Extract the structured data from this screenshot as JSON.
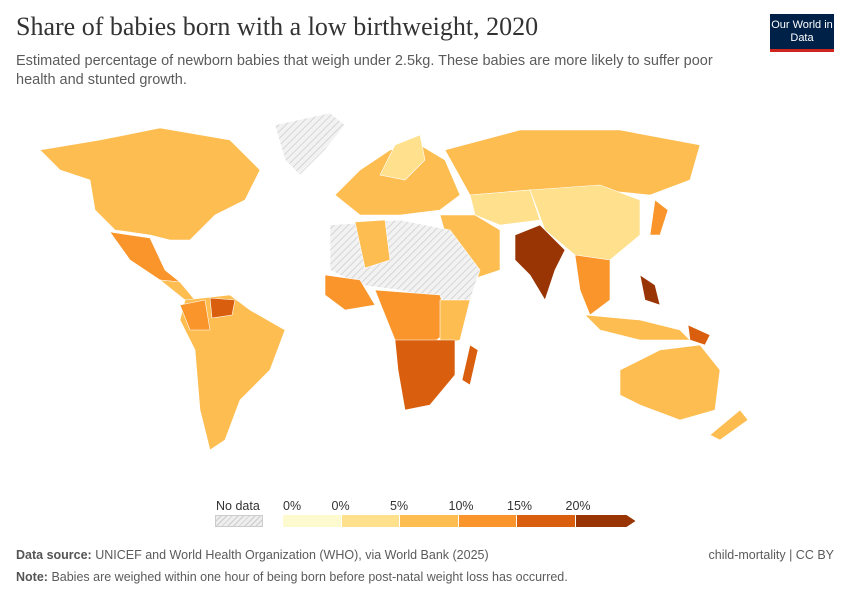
{
  "header": {
    "title": "Share of babies born with a low birthweight, 2020",
    "subtitle": "Estimated percentage of newborn babies that weigh under 2.5kg. These babies are more likely to suffer poor health and stunted growth.",
    "logo": "Our World in Data"
  },
  "legend": {
    "no_data": "No data",
    "bins": [
      "0%",
      "0%",
      "5%",
      "10%",
      "15%",
      "20%"
    ],
    "colors": [
      "#fefad0",
      "#fee08d",
      "#fdbd50",
      "#f9952a",
      "#d95f0e",
      "#993404"
    ],
    "no_data_color": "#eeeeee"
  },
  "footer": {
    "source_label": "Data source:",
    "source": "UNICEF and World Health Organization (WHO), via World Bank (2025)",
    "note_label": "Note:",
    "note": "Babies are weighed within one hour of being born before post-natal weight loss has occurred.",
    "license": "child-mortality | CC BY"
  }
}
